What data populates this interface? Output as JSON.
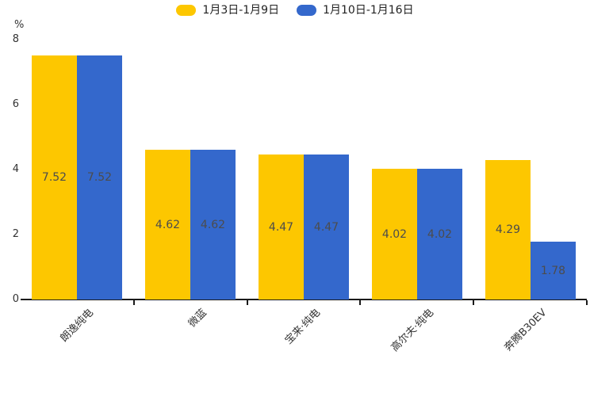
{
  "chart_data": {
    "type": "bar",
    "title": "",
    "xlabel": "",
    "ylabel": "%",
    "ylim": [
      0,
      8
    ],
    "yticks": [
      0,
      2,
      4,
      6,
      8
    ],
    "grid": false,
    "legend_position": "top-center",
    "categories": [
      "朗逸纯电",
      "微蓝",
      "宝来·纯电",
      "高尔夫·纯电",
      "奔腾B30EV"
    ],
    "series": [
      {
        "name": "1月3日-1月9日",
        "color": "#fdc700",
        "values": [
          7.52,
          4.62,
          4.47,
          4.02,
          4.29
        ]
      },
      {
        "name": "1月10日-1月16日",
        "color": "#3468cc",
        "values": [
          7.52,
          4.62,
          4.47,
          4.02,
          1.78
        ]
      }
    ],
    "value_labels": [
      [
        "7.52",
        "4.62",
        "4.47",
        "4.02",
        "4.29"
      ],
      [
        "7.52",
        "4.62",
        "4.47",
        "4.02",
        "1.78"
      ]
    ]
  },
  "colors": {
    "series1": "#fdc700",
    "series2": "#3468cc",
    "axis": "#1a1a1a",
    "tick_text": "#333333",
    "bar_value_text": "#4c4c4c",
    "background": "#ffffff"
  },
  "yaxis": {
    "unit_label": "%"
  }
}
